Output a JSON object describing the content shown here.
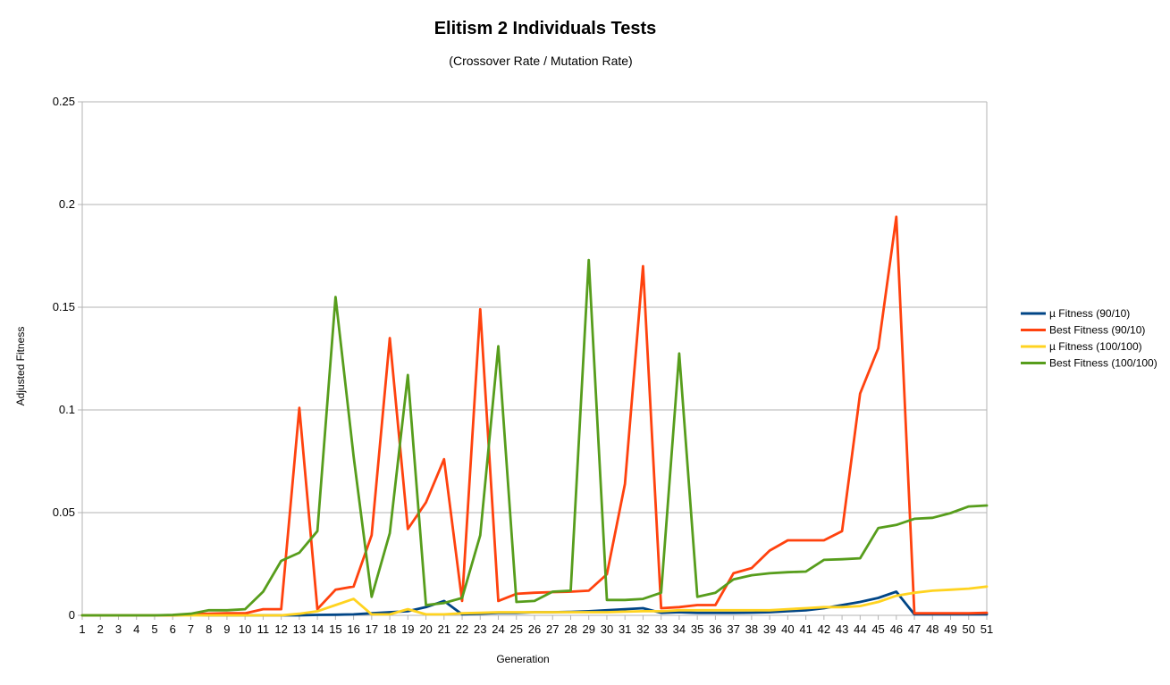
{
  "chart_data": {
    "type": "line",
    "title": "Elitism 2 Individuals Tests",
    "subtitle": "(Crossover Rate / Mutation Rate)",
    "xlabel": "Generation",
    "ylabel": "Adjusted Fitness",
    "ylim": [
      0,
      0.25
    ],
    "y_ticks": [
      "0",
      "0.05",
      "0.1",
      "0.15",
      "0.2",
      "0.25"
    ],
    "grid": true,
    "legend_position": "right",
    "x": [
      1,
      2,
      3,
      4,
      5,
      6,
      7,
      8,
      9,
      10,
      11,
      12,
      13,
      14,
      15,
      16,
      17,
      18,
      19,
      20,
      21,
      22,
      23,
      24,
      25,
      26,
      27,
      28,
      29,
      30,
      31,
      32,
      33,
      34,
      35,
      36,
      37,
      38,
      39,
      40,
      41,
      42,
      43,
      44,
      45,
      46,
      47,
      48,
      49,
      50,
      51
    ],
    "series": [
      {
        "name": "µ Fitness (90/10)",
        "color": "#004586",
        "values": [
          0,
          0,
          0,
          0,
          0,
          0,
          0.0003,
          0,
          0,
          0,
          0,
          0,
          0,
          0.0002,
          0.0003,
          0.0005,
          0.001,
          0.0015,
          0.002,
          0.004,
          0.007,
          0.0005,
          0.0008,
          0.0012,
          0.0012,
          0.0015,
          0.0015,
          0.0017,
          0.002,
          0.0025,
          0.003,
          0.0035,
          0.0012,
          0.0015,
          0.0012,
          0.0012,
          0.0012,
          0.0013,
          0.0015,
          0.002,
          0.0025,
          0.0035,
          0.005,
          0.0065,
          0.0085,
          0.0115,
          0.0005,
          0.0005,
          0.0005,
          0.0005,
          0.0005
        ]
      },
      {
        "name": "Best Fitness (90/10)",
        "color": "#ff420e",
        "values": [
          0,
          0,
          0,
          0,
          0,
          0,
          0.0005,
          0.0008,
          0.001,
          0.001,
          0.003,
          0.003,
          0.101,
          0.003,
          0.0125,
          0.014,
          0.039,
          0.135,
          0.042,
          0.055,
          0.076,
          0.007,
          0.149,
          0.007,
          0.0105,
          0.011,
          0.0113,
          0.0115,
          0.012,
          0.02,
          0.064,
          0.17,
          0.0035,
          0.004,
          0.005,
          0.005,
          0.0205,
          0.023,
          0.0315,
          0.0365,
          0.0365,
          0.0365,
          0.041,
          0.108,
          0.13,
          0.194,
          0.001,
          0.001,
          0.001,
          0.001,
          0.0012
        ]
      },
      {
        "name": "µ Fitness (100/100)",
        "color": "#ffd320",
        "values": [
          0,
          0,
          0,
          0,
          0,
          0,
          0,
          0,
          0,
          0,
          0,
          0,
          0.0008,
          0.002,
          0.005,
          0.008,
          0.0005,
          0.0005,
          0.003,
          0.0005,
          0.0005,
          0.001,
          0.0012,
          0.0015,
          0.0015,
          0.0015,
          0.0015,
          0.0015,
          0.0015,
          0.0015,
          0.0018,
          0.002,
          0.002,
          0.0025,
          0.0025,
          0.0025,
          0.0025,
          0.0025,
          0.0025,
          0.003,
          0.0035,
          0.004,
          0.004,
          0.0045,
          0.0065,
          0.0095,
          0.011,
          0.012,
          0.0125,
          0.013,
          0.014
        ]
      },
      {
        "name": "Best Fitness (100/100)",
        "color": "#579d1c",
        "values": [
          0,
          0,
          0,
          0,
          0,
          0.0002,
          0.0008,
          0.0025,
          0.0025,
          0.003,
          0.0115,
          0.0265,
          0.0305,
          0.041,
          0.155,
          0.0775,
          0.009,
          0.04,
          0.117,
          0.005,
          0.006,
          0.0085,
          0.039,
          0.131,
          0.0065,
          0.007,
          0.0115,
          0.012,
          0.173,
          0.0075,
          0.0075,
          0.008,
          0.011,
          0.1275,
          0.009,
          0.011,
          0.0175,
          0.0195,
          0.0205,
          0.021,
          0.0213,
          0.027,
          0.0273,
          0.0278,
          0.0425,
          0.044,
          0.047,
          0.0475,
          0.0498,
          0.053,
          0.0535
        ]
      }
    ]
  }
}
